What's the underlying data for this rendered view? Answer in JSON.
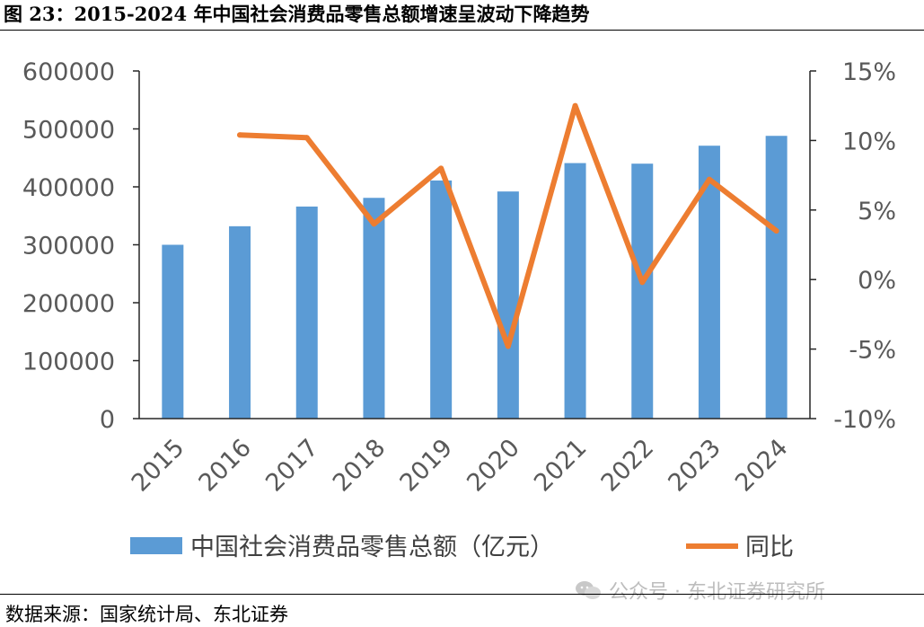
{
  "figure": {
    "title": "图 23：2015-2024 年中国社会消费品零售总额增速呈波动下降趋势",
    "source": "数据来源：国家统计局、东北证券",
    "watermark": "公众号 · 东北证券研究所"
  },
  "chart_data": {
    "type": "bar",
    "categories": [
      "2015",
      "2016",
      "2017",
      "2018",
      "2019",
      "2020",
      "2021",
      "2022",
      "2023",
      "2024"
    ],
    "series": [
      {
        "name": "中国社会消费品零售总额（亿元）",
        "type": "bar",
        "axis": "left",
        "color": "#5B9BD5",
        "values": [
          300000,
          332000,
          366000,
          381000,
          411000,
          392000,
          441000,
          440000,
          471000,
          488000
        ]
      },
      {
        "name": "同比",
        "type": "line",
        "axis": "right",
        "color": "#ED7D31",
        "values": [
          null,
          10.4,
          10.2,
          4.0,
          8.0,
          -4.8,
          12.5,
          -0.2,
          7.2,
          3.5
        ]
      }
    ],
    "left_axis": {
      "min": 0,
      "max": 600000,
      "step": 100000,
      "ticks": [
        "0",
        "100000",
        "200000",
        "300000",
        "400000",
        "500000",
        "600000"
      ]
    },
    "right_axis": {
      "min": -10,
      "max": 15,
      "step": 5,
      "unit": "%",
      "ticks": [
        "-10%",
        "-5%",
        "0%",
        "5%",
        "10%",
        "15%"
      ]
    },
    "grid": false,
    "legend_position": "bottom"
  }
}
